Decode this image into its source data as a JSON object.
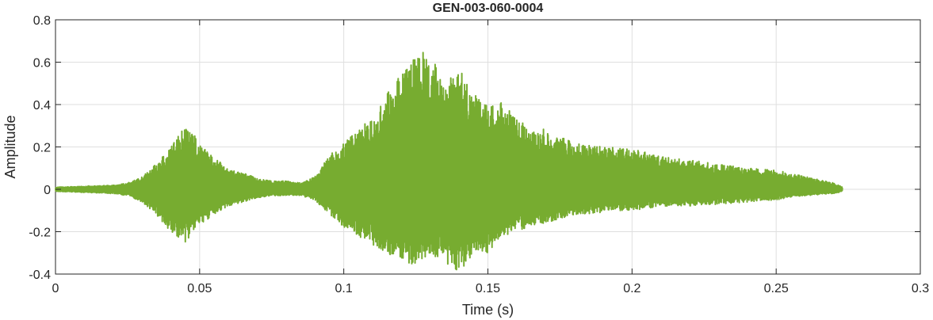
{
  "chart_data": {
    "type": "line",
    "title": "GEN-003-060-0004",
    "xlabel": "Time (s)",
    "ylabel": "Amplitude",
    "xlim": [
      0,
      0.3
    ],
    "ylim": [
      -0.4,
      0.8
    ],
    "x_ticks": [
      "0",
      "0.05",
      "0.1",
      "0.15",
      "0.2",
      "0.25",
      "0.3"
    ],
    "y_ticks": [
      "-0.4",
      "-0.2",
      "0",
      "0.2",
      "0.4",
      "0.6",
      "0.8"
    ],
    "grid": true,
    "series": [
      {
        "color": "#77ac30",
        "x": [
          0,
          0.01,
          0.02,
          0.025,
          0.03,
          0.035,
          0.04,
          0.045,
          0.048,
          0.05,
          0.055,
          0.06,
          0.065,
          0.07,
          0.075,
          0.08,
          0.085,
          0.09,
          0.095,
          0.1,
          0.105,
          0.11,
          0.115,
          0.12,
          0.125,
          0.13,
          0.135,
          0.14,
          0.145,
          0.15,
          0.155,
          0.16,
          0.165,
          0.17,
          0.175,
          0.18,
          0.19,
          0.2,
          0.21,
          0.22,
          0.23,
          0.24,
          0.25,
          0.26,
          0.27,
          0.273
        ],
        "max": [
          0.01,
          0.015,
          0.02,
          0.03,
          0.06,
          0.12,
          0.2,
          0.3,
          0.26,
          0.22,
          0.15,
          0.1,
          0.08,
          0.05,
          0.04,
          0.04,
          0.03,
          0.06,
          0.16,
          0.22,
          0.28,
          0.35,
          0.45,
          0.55,
          0.66,
          0.64,
          0.5,
          0.58,
          0.45,
          0.4,
          0.42,
          0.35,
          0.28,
          0.29,
          0.25,
          0.22,
          0.2,
          0.19,
          0.16,
          0.14,
          0.12,
          0.1,
          0.09,
          0.06,
          0.03,
          0.01
        ],
        "min": [
          -0.01,
          -0.015,
          -0.02,
          -0.03,
          -0.06,
          -0.12,
          -0.2,
          -0.25,
          -0.2,
          -0.17,
          -0.12,
          -0.08,
          -0.06,
          -0.04,
          -0.03,
          -0.03,
          -0.03,
          -0.05,
          -0.12,
          -0.18,
          -0.22,
          -0.26,
          -0.3,
          -0.34,
          -0.36,
          -0.32,
          -0.34,
          -0.4,
          -0.3,
          -0.3,
          -0.22,
          -0.2,
          -0.17,
          -0.16,
          -0.14,
          -0.12,
          -0.11,
          -0.1,
          -0.08,
          -0.08,
          -0.07,
          -0.06,
          -0.05,
          -0.03,
          -0.02,
          -0.01
        ]
      }
    ]
  }
}
